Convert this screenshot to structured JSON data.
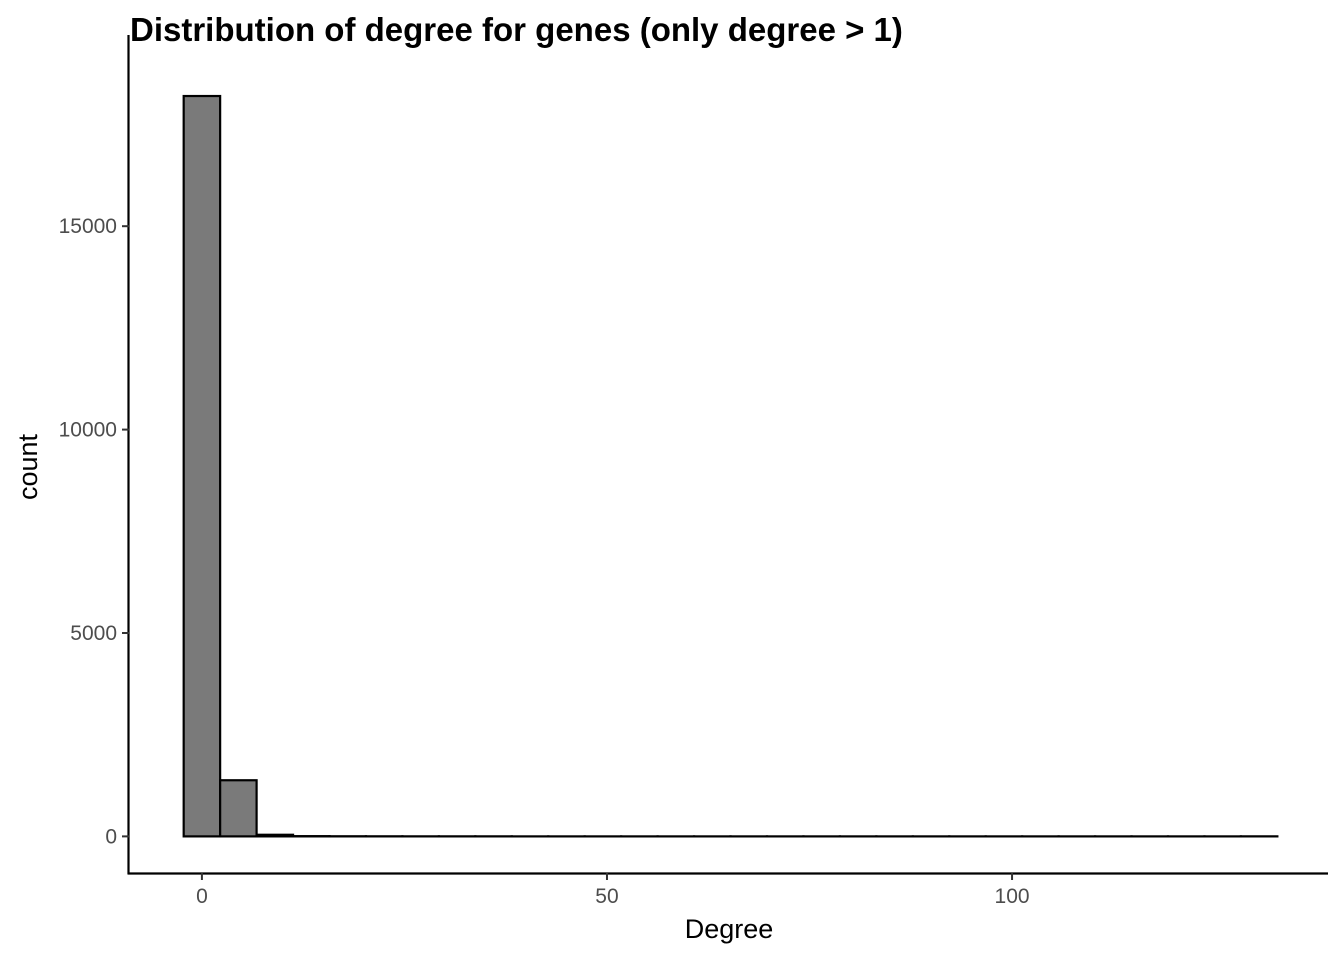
{
  "chart_data": {
    "type": "bar",
    "title": "Distribution of degree for genes (only degree > 1)",
    "xlabel": "Degree",
    "ylabel": "count",
    "xlim": [
      -9,
      139
    ],
    "ylim": [
      -900,
      19700
    ],
    "x_ticks": [
      0,
      50,
      100
    ],
    "y_ticks": [
      0,
      5000,
      10000,
      15000
    ],
    "bin_width": 4.5,
    "bins": [
      {
        "x0": -2.25,
        "x1": 2.25,
        "count": 18200
      },
      {
        "x0": 2.25,
        "x1": 6.75,
        "count": 1380
      },
      {
        "x0": 6.75,
        "x1": 11.25,
        "count": 40
      },
      {
        "x0": 11.25,
        "x1": 15.75,
        "count": 6
      },
      {
        "x0": 15.75,
        "x1": 20.25,
        "count": 3
      },
      {
        "x0": 20.25,
        "x1": 24.75,
        "count": 2
      },
      {
        "x0": 24.75,
        "x1": 29.25,
        "count": 1
      },
      {
        "x0": 29.25,
        "x1": 33.75,
        "count": 1
      },
      {
        "x0": 33.75,
        "x1": 38.25,
        "count": 1
      },
      {
        "x0": 38.25,
        "x1": 42.75,
        "count": 0
      },
      {
        "x0": 42.75,
        "x1": 47.25,
        "count": 0
      },
      {
        "x0": 47.25,
        "x1": 51.75,
        "count": 0
      },
      {
        "x0": 51.75,
        "x1": 56.25,
        "count": 0
      },
      {
        "x0": 56.25,
        "x1": 60.75,
        "count": 0
      },
      {
        "x0": 60.75,
        "x1": 65.25,
        "count": 0
      },
      {
        "x0": 65.25,
        "x1": 69.75,
        "count": 0
      },
      {
        "x0": 69.75,
        "x1": 74.25,
        "count": 0
      },
      {
        "x0": 74.25,
        "x1": 78.75,
        "count": 0
      },
      {
        "x0": 78.75,
        "x1": 83.25,
        "count": 0
      },
      {
        "x0": 83.25,
        "x1": 87.75,
        "count": 0
      },
      {
        "x0": 87.75,
        "x1": 92.25,
        "count": 0
      },
      {
        "x0": 92.25,
        "x1": 96.75,
        "count": 0
      },
      {
        "x0": 96.75,
        "x1": 101.25,
        "count": 0
      },
      {
        "x0": 101.25,
        "x1": 105.75,
        "count": 0
      },
      {
        "x0": 105.75,
        "x1": 110.25,
        "count": 0
      },
      {
        "x0": 110.25,
        "x1": 114.75,
        "count": 0
      },
      {
        "x0": 114.75,
        "x1": 119.25,
        "count": 0
      },
      {
        "x0": 119.25,
        "x1": 123.75,
        "count": 0
      },
      {
        "x0": 123.75,
        "x1": 128.25,
        "count": 0
      },
      {
        "x0": 128.25,
        "x1": 132.75,
        "count": 1
      }
    ],
    "bar_fill": "#7a7a7a",
    "bar_stroke": "#000000",
    "grid": false,
    "legend": "none"
  }
}
